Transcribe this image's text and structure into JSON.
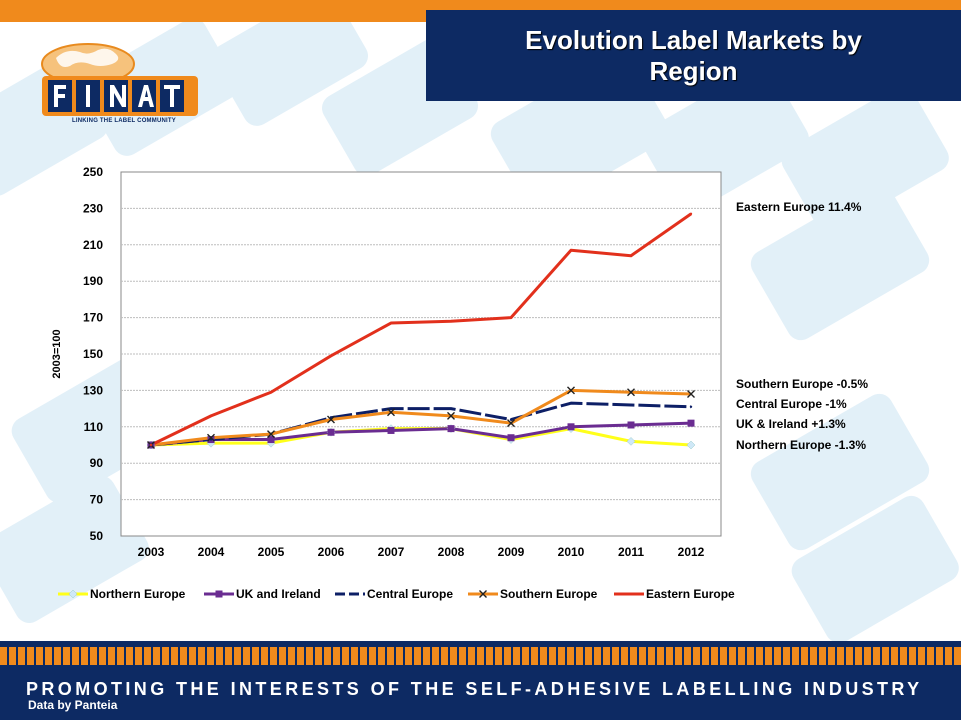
{
  "slide": {
    "title": "Evolution Label Markets by Region",
    "logo_text": "FINAT",
    "logo_tagline": "LINKING THE LABEL COMMUNITY",
    "footer_banner": "PROMOTING THE INTERESTS OF THE SELF-ADHESIVE LABELLING INDUSTRY",
    "credit": "Data by Panteia"
  },
  "annotations": [
    "Eastern Europe 11.4%",
    "Southern Europe -0.5%",
    "Central Europe -1%",
    "UK & Ireland +1.3%",
    "Northern Europe -1.3%"
  ],
  "colors": {
    "brand_orange": "#f08a1c",
    "brand_navy": "#0d2a63"
  },
  "chart_data": {
    "type": "line",
    "title": "",
    "xlabel": "",
    "ylabel": "2003=100",
    "categories": [
      "2003",
      "2004",
      "2005",
      "2006",
      "2007",
      "2008",
      "2009",
      "2010",
      "2011",
      "2012"
    ],
    "ylim": [
      50,
      250
    ],
    "yticks": [
      50,
      70,
      90,
      110,
      130,
      150,
      170,
      190,
      210,
      230,
      250
    ],
    "grid": true,
    "legend_position": "bottom",
    "series": [
      {
        "name": "Northern Europe",
        "color": "#ffff1a",
        "marker": "diamond",
        "dash": "solid",
        "values": [
          100,
          101,
          101,
          107,
          109,
          109,
          103,
          109,
          102,
          100
        ]
      },
      {
        "name": "UK and Ireland",
        "color": "#6a2c91",
        "marker": "square",
        "dash": "solid",
        "values": [
          100,
          103,
          103,
          107,
          108,
          109,
          104,
          110,
          111,
          112
        ]
      },
      {
        "name": "Central Europe",
        "color": "#0d1f66",
        "marker": "none",
        "dash": "dash",
        "values": [
          100,
          103,
          106,
          115,
          120,
          120,
          114,
          123,
          122,
          121
        ]
      },
      {
        "name": "Southern Europe",
        "color": "#f08a1c",
        "marker": "x",
        "dash": "solid",
        "values": [
          100,
          104,
          106,
          114,
          118,
          116,
          112,
          130,
          129,
          128
        ]
      },
      {
        "name": "Eastern Europe",
        "color": "#e2301c",
        "marker": "none",
        "dash": "solid",
        "values": [
          100,
          116,
          129,
          149,
          167,
          168,
          170,
          207,
          204,
          227
        ]
      }
    ]
  }
}
